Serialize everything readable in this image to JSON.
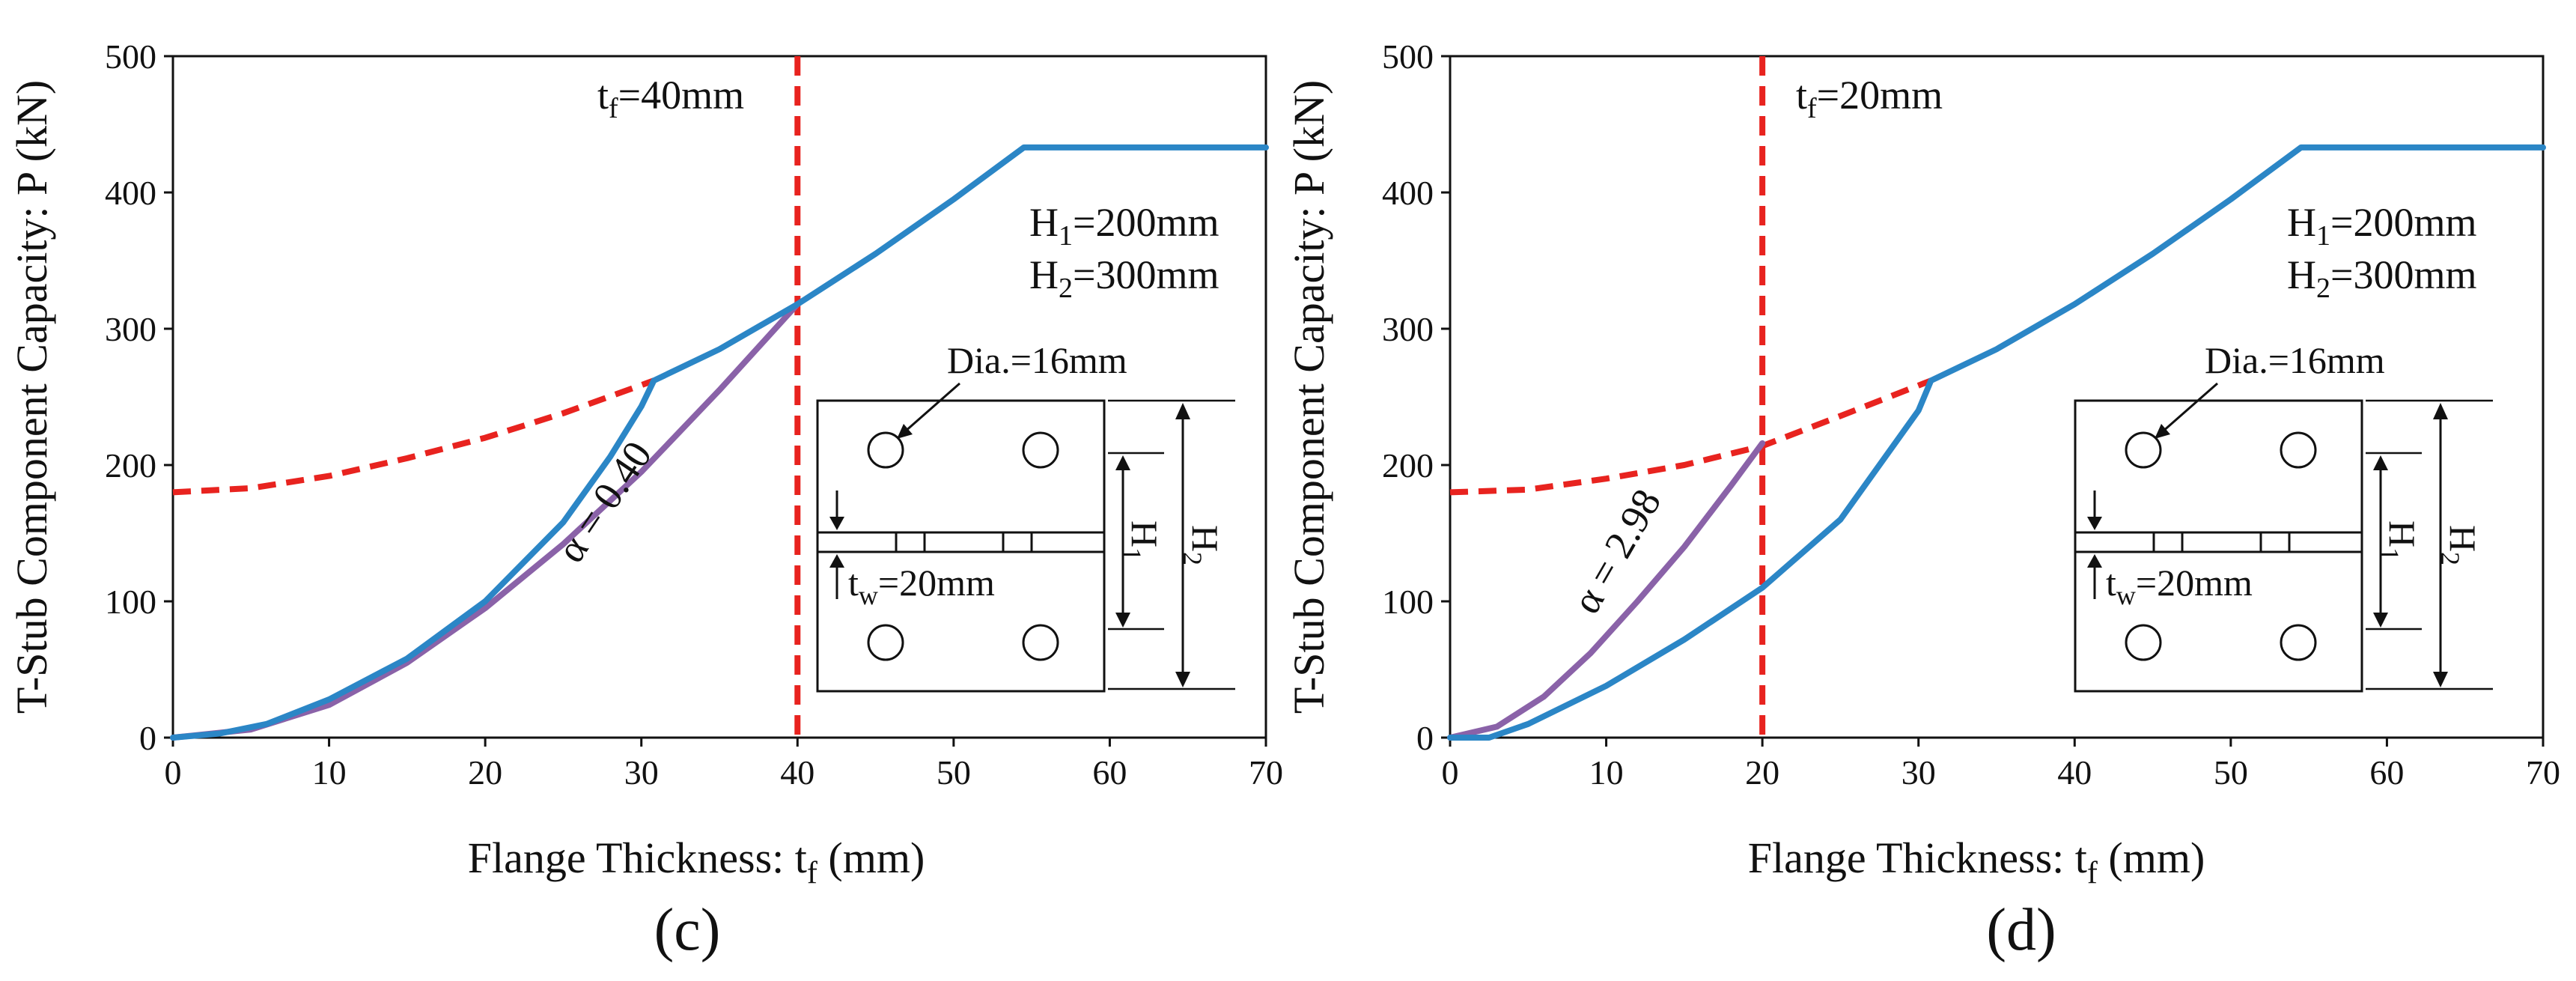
{
  "chart_data": [
    {
      "id": "c",
      "type": "line",
      "panel_label": "(c)",
      "xlabel": "Flange Thickness: t",
      "xlabel_sub": "f",
      "xlabel_unit": " (mm)",
      "ylabel": "T-Stub Component Capacity: P (kN)",
      "xlim": [
        0,
        70
      ],
      "ylim": [
        0,
        500
      ],
      "xticks": [
        0,
        10,
        20,
        30,
        40,
        50,
        60,
        70
      ],
      "yticks": [
        0,
        100,
        200,
        300,
        400,
        500
      ],
      "series": [
        {
          "name": "capacity",
          "color": "#2b86c6",
          "dash": "solid",
          "x": [
            0,
            3,
            6,
            10,
            15,
            20,
            25,
            28,
            30,
            30.8,
            35,
            40,
            45,
            50,
            54.5,
            60,
            70
          ],
          "y": [
            0,
            3,
            10,
            28,
            58,
            100,
            158,
            206,
            243,
            262,
            285,
            318,
            355,
            395,
            433,
            433,
            433
          ]
        },
        {
          "name": "alpha-curve",
          "color": "#8a62a8",
          "dash": "solid",
          "x": [
            0,
            5,
            10,
            15,
            20,
            25,
            30,
            35,
            40
          ],
          "y": [
            0,
            6,
            24,
            55,
            95,
            142,
            195,
            255,
            318
          ]
        },
        {
          "name": "extension",
          "color": "#e8231f",
          "dash": "dashed",
          "x": [
            0,
            5,
            10,
            15,
            20,
            25,
            30.8
          ],
          "y": [
            180,
            183,
            192,
            205,
            220,
            238,
            262
          ]
        }
      ],
      "vline": {
        "x": 40,
        "color": "#e8231f",
        "label_main": "t",
        "label_sub": "f",
        "label_rest": "=40mm"
      },
      "alpha_label": "α = 0.40",
      "dims": {
        "h1_main": "H",
        "h1_sub": "1",
        "h1_rest": "=200mm",
        "h2_main": "H",
        "h2_sub": "2",
        "h2_rest": "=300mm"
      },
      "inset": {
        "dia_label": "Dia.=16mm",
        "tw_main": "t",
        "tw_sub": "w",
        "tw_rest": "=20mm",
        "h1_letter": "H",
        "h1_sub": "1",
        "h2_letter": "H",
        "h2_sub": "2"
      }
    },
    {
      "id": "d",
      "type": "line",
      "panel_label": "(d)",
      "xlabel": "Flange Thickness: t",
      "xlabel_sub": "f",
      "xlabel_unit": " (mm)",
      "ylabel": "T-Stub Component Capacity: P (kN)",
      "xlim": [
        0,
        70
      ],
      "ylim": [
        0,
        500
      ],
      "xticks": [
        0,
        10,
        20,
        30,
        40,
        50,
        60,
        70
      ],
      "yticks": [
        0,
        100,
        200,
        300,
        400,
        500
      ],
      "series": [
        {
          "name": "capacity",
          "color": "#2b86c6",
          "dash": "solid",
          "x": [
            0,
            2.5,
            5,
            10,
            15,
            20,
            25,
            30,
            30.8,
            35,
            40,
            45,
            50,
            54.5,
            60,
            70
          ],
          "y": [
            0,
            0,
            10,
            38,
            72,
            110,
            160,
            240,
            262,
            285,
            318,
            355,
            395,
            433,
            433,
            433
          ]
        },
        {
          "name": "alpha-curve",
          "color": "#8a62a8",
          "dash": "solid",
          "x": [
            0,
            3,
            6,
            9,
            12,
            15,
            18,
            20
          ],
          "y": [
            0,
            8,
            30,
            62,
            100,
            140,
            185,
            216
          ]
        },
        {
          "name": "extension",
          "color": "#e8231f",
          "dash": "dashed",
          "x": [
            0,
            5,
            10,
            15,
            20,
            25,
            30.8
          ],
          "y": [
            180,
            182,
            190,
            200,
            214,
            236,
            262
          ]
        }
      ],
      "vline": {
        "x": 20,
        "color": "#e8231f",
        "label_main": "t",
        "label_sub": "f",
        "label_rest": "=20mm"
      },
      "alpha_label": "α = 2.98",
      "dims": {
        "h1_main": "H",
        "h1_sub": "1",
        "h1_rest": "=200mm",
        "h2_main": "H",
        "h2_sub": "2",
        "h2_rest": "=300mm"
      },
      "inset": {
        "dia_label": "Dia.=16mm",
        "tw_main": "t",
        "tw_sub": "w",
        "tw_rest": "=20mm",
        "h1_letter": "H",
        "h1_sub": "1",
        "h2_letter": "H",
        "h2_sub": "2"
      }
    }
  ]
}
